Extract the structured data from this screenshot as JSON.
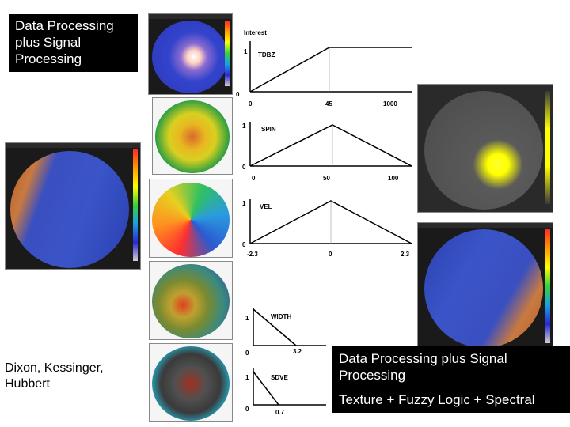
{
  "top_left_label": {
    "line1": "Data Processing",
    "line2": "plus Signal",
    "line3": "Processing"
  },
  "credit": {
    "line1": "Dixon, Kessinger,",
    "line2": "Hubbert"
  },
  "bottom_right_label": {
    "line1": "Data Processing plus Signal",
    "line2": "Processing",
    "line3": "Texture + Fuzzy Logic + Spectral"
  },
  "membership_charts": [
    {
      "id": "tdbz",
      "header": "Interest",
      "name": "TDBZ",
      "y_top": "1",
      "y_bottom": "0",
      "x_ticks": [
        "0",
        "45",
        "1000"
      ],
      "shape": "ramp-up"
    },
    {
      "id": "spin",
      "name": "SPIN",
      "y_top": "1",
      "y_bottom": "0",
      "x_ticks": [
        "0",
        "50",
        "100"
      ],
      "shape": "triangle"
    },
    {
      "id": "vel",
      "name": "VEL",
      "y_top": "1",
      "y_bottom": "0",
      "x_ticks": [
        "-2.3",
        "0",
        "2.3"
      ],
      "shape": "triangle"
    },
    {
      "id": "width",
      "name": "WIDTH",
      "y_top": "1",
      "y_bottom": "0",
      "x_ticks": [
        "0",
        "3.2"
      ],
      "shape": "ramp-down"
    },
    {
      "id": "sdve",
      "name": "SDVE",
      "y_top": "1",
      "y_bottom": "0",
      "x_ticks": [
        "0",
        "0.7"
      ],
      "shape": "ramp-down"
    }
  ],
  "radar_images": [
    {
      "id": "tdbz-field",
      "base": "#2f3fd0",
      "accent": "#ffffff"
    },
    {
      "id": "spin-field",
      "base": "#e0d020",
      "accent": "#30b040"
    },
    {
      "id": "vel-field",
      "base": "#2a9be0",
      "accent": "#ff3030"
    },
    {
      "id": "width-field",
      "base": "#7a8a30",
      "accent": "#e04020"
    },
    {
      "id": "sdve-field",
      "base": "#404040",
      "accent": "#20c0e0"
    },
    {
      "id": "left-reflectivity",
      "base": "#3a4fc0",
      "accent": "#c86a30"
    },
    {
      "id": "right-clutter-map",
      "base": "#4a4a4a",
      "accent": "#ffff00"
    },
    {
      "id": "right-reflectivity",
      "base": "#3a4fc0",
      "accent": "#c86a30"
    }
  ]
}
